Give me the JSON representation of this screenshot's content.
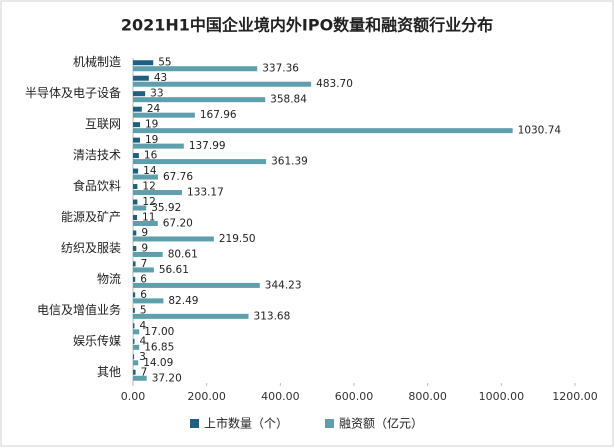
{
  "chart_data": {
    "type": "bar",
    "orientation": "horizontal",
    "title": "2021H1中国企业境内外IPO数量和融资额行业分布",
    "categories": [
      "机械制造",
      null,
      "半导体及电子设备",
      null,
      "互联网",
      null,
      "清洁技术",
      null,
      "食品饮料",
      null,
      "能源及矿产",
      null,
      "纺织及服装",
      null,
      "物流",
      null,
      "电信及增值业务",
      null,
      "娱乐传媒",
      null,
      "其他"
    ],
    "series": [
      {
        "name": "上市数量（个）",
        "color": "#1f5f7f",
        "values": [
          55,
          43,
          33,
          24,
          19,
          19,
          16,
          14,
          12,
          12,
          11,
          9,
          9,
          7,
          6,
          6,
          5,
          4,
          4,
          3,
          7
        ]
      },
      {
        "name": "融资额（亿元）",
        "color": "#5f9eab",
        "values": [
          337.36,
          483.7,
          358.84,
          167.96,
          1030.74,
          137.99,
          361.39,
          67.76,
          133.17,
          35.92,
          67.2,
          219.5,
          80.61,
          56.61,
          344.23,
          82.49,
          313.68,
          17.0,
          16.85,
          14.09,
          37.2
        ],
        "value_labels": [
          "337.36",
          "483.70",
          "358.84",
          "167.96",
          "1030.74",
          "137.99",
          "361.39",
          "67.76",
          "133.17",
          "35.92",
          "67.20",
          "219.50",
          "80.61",
          "56.61",
          "344.23",
          "82.49",
          "313.68",
          "17.00",
          "16.85",
          "14.09",
          "37.20"
        ]
      }
    ],
    "xlim": [
      0,
      1200
    ],
    "xticks": [
      {
        "value": 0,
        "label": "0.00"
      },
      {
        "value": 200,
        "label": "200.00"
      },
      {
        "value": 400,
        "label": "400.00"
      },
      {
        "value": 600,
        "label": "600.00"
      },
      {
        "value": 800,
        "label": "800.00"
      },
      {
        "value": 1000,
        "label": "1000.00"
      },
      {
        "value": 1200,
        "label": "1200.00"
      }
    ],
    "grid": false,
    "legend": "bottom"
  }
}
